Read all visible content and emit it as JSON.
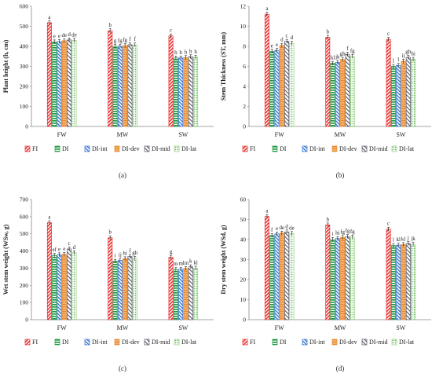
{
  "series_names": [
    "FI",
    "DI",
    "DI-int",
    "DI-dev",
    "DI-mid",
    "DI-lat"
  ],
  "colors": {
    "FI": "#e8312f",
    "DI": "#1e9a3f",
    "DI-int": "#2f6fd1",
    "DI-dev": "#e8892f",
    "DI-mid": "#555566",
    "DI-lat": "#8fcf7f"
  },
  "chart_data": [
    {
      "type": "bar",
      "panel_label": "(a)",
      "ylabel": "Plant height (h, cm)",
      "ylim": [
        0,
        600
      ],
      "yticks": [
        0,
        100,
        200,
        300,
        400,
        500,
        600
      ],
      "categories": [
        "FW",
        "MW",
        "SW"
      ],
      "series": [
        {
          "name": "FI",
          "values": [
            518,
            478,
            452
          ]
        },
        {
          "name": "DI",
          "values": [
            422,
            400,
            342
          ]
        },
        {
          "name": "DI-int",
          "values": [
            424,
            400,
            342
          ]
        },
        {
          "name": "DI-dev",
          "values": [
            428,
            404,
            344
          ]
        },
        {
          "name": "DI-mid",
          "values": [
            432,
            408,
            348
          ]
        },
        {
          "name": "DI-lat",
          "values": [
            430,
            407,
            345
          ]
        }
      ],
      "letters": [
        [
          "a",
          "e",
          "e",
          "de",
          "d",
          "de"
        ],
        [
          "b",
          "g",
          "fg",
          "fg",
          "f",
          "f"
        ],
        [
          "c",
          "h",
          "h",
          "h",
          "h",
          "h"
        ]
      ]
    },
    {
      "type": "bar",
      "panel_label": "(b)",
      "ylabel": "Stem Thickness (ST, mm)",
      "ylim": [
        0,
        12
      ],
      "yticks": [
        0,
        2,
        4,
        6,
        8,
        10,
        12
      ],
      "categories": [
        "FW",
        "MW",
        "SW"
      ],
      "series": [
        {
          "name": "FI",
          "values": [
            11.2,
            8.9,
            8.7
          ]
        },
        {
          "name": "DI",
          "values": [
            7.5,
            6.3,
            6.0
          ]
        },
        {
          "name": "DI-int",
          "values": [
            7.6,
            6.4,
            6.1
          ]
        },
        {
          "name": "DI-dev",
          "values": [
            8.1,
            6.7,
            6.5
          ]
        },
        {
          "name": "DI-mid",
          "values": [
            8.5,
            7.2,
            6.9
          ]
        },
        {
          "name": "DI-lat",
          "values": [
            8.3,
            7.0,
            6.7
          ]
        }
      ],
      "letters": [
        [
          "a",
          "e",
          "e",
          "d",
          "c",
          "d"
        ],
        [
          "b",
          "kl",
          "jk",
          "gh",
          "f",
          "fg"
        ],
        [
          "c",
          "l",
          "l",
          "ij",
          "gh",
          "hi"
        ]
      ]
    },
    {
      "type": "bar",
      "panel_label": "(c)",
      "ylabel": "Wet stem weight (WSw, g)",
      "ylim": [
        0,
        700
      ],
      "yticks": [
        0,
        100,
        200,
        300,
        400,
        500,
        600,
        700
      ],
      "categories": [
        "FW",
        "MW",
        "SW"
      ],
      "series": [
        {
          "name": "FI",
          "values": [
            565,
            477,
            363
          ]
        },
        {
          "name": "DI",
          "values": [
            375,
            340,
            292
          ]
        },
        {
          "name": "DI-int",
          "values": [
            378,
            345,
            294
          ]
        },
        {
          "name": "DI-dev",
          "values": [
            380,
            355,
            298
          ]
        },
        {
          "name": "DI-mid",
          "values": [
            412,
            368,
            308
          ]
        },
        {
          "name": "DI-lat",
          "values": [
            390,
            357,
            300
          ]
        }
      ],
      "letters": [
        [
          "a",
          "ef",
          "e",
          "e",
          "c",
          "d"
        ],
        [
          "b",
          "i",
          "ij",
          "hi",
          "f",
          "gh"
        ],
        [
          "g",
          "m",
          "m",
          "lm",
          "k",
          "kl"
        ]
      ]
    },
    {
      "type": "bar",
      "panel_label": "(d)",
      "ylabel": "Dry stem weight (WSd, g)",
      "ylim": [
        0,
        60
      ],
      "yticks": [
        0,
        10,
        20,
        30,
        40,
        50,
        60
      ],
      "categories": [
        "FW",
        "MW",
        "SW"
      ],
      "series": [
        {
          "name": "FI",
          "values": [
            51.5,
            47.3,
            45.2
          ]
        },
        {
          "name": "DI",
          "values": [
            42.0,
            40.0,
            37.0
          ]
        },
        {
          "name": "DI-int",
          "values": [
            42.8,
            40.5,
            37.2
          ]
        },
        {
          "name": "DI-dev",
          "values": [
            43.2,
            41.0,
            37.5
          ]
        },
        {
          "name": "DI-mid",
          "values": [
            43.8,
            41.5,
            38.0
          ]
        },
        {
          "name": "DI-lat",
          "values": [
            43.0,
            41.2,
            37.6
          ]
        }
      ],
      "letters": [
        [
          "a",
          "f",
          "e",
          "de",
          "d",
          "de"
        ],
        [
          "b",
          "i",
          "hi",
          "fg",
          "fg",
          "fg"
        ],
        [
          "c",
          "l",
          "kl",
          "kl",
          "j",
          "jk"
        ]
      ]
    }
  ]
}
